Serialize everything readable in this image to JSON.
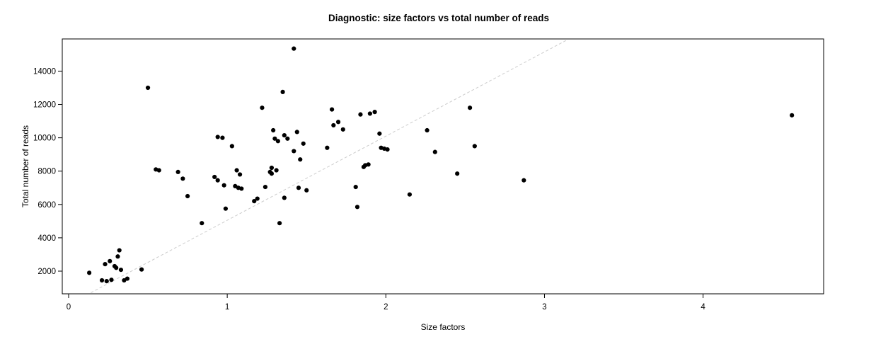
{
  "chart_data": {
    "type": "scatter",
    "title": "Diagnostic: size factors vs total number of reads",
    "xlabel": "Size factors",
    "ylabel": "Total number of reads",
    "x_ticks": [
      0,
      1,
      2,
      3,
      4
    ],
    "y_ticks": [
      2000,
      4000,
      6000,
      8000,
      10000,
      12000,
      14000
    ],
    "xlim": [
      -0.04,
      4.76
    ],
    "ylim": [
      640,
      15930
    ],
    "grid": false,
    "legend": "none",
    "point_color": "#000000",
    "trend_line": {
      "style": "dashed",
      "color": "#cccccc",
      "slope": 5050,
      "intercept": 0,
      "x1": 0.14,
      "y1": 707,
      "x2": 3.14,
      "y2": 15857
    },
    "points": [
      [
        0.13,
        1900
      ],
      [
        0.21,
        1450
      ],
      [
        0.23,
        2420
      ],
      [
        0.24,
        1400
      ],
      [
        0.26,
        2600
      ],
      [
        0.27,
        1480
      ],
      [
        0.29,
        2300
      ],
      [
        0.3,
        2200
      ],
      [
        0.31,
        2880
      ],
      [
        0.32,
        3250
      ],
      [
        0.33,
        2080
      ],
      [
        0.35,
        1450
      ],
      [
        0.37,
        1550
      ],
      [
        0.46,
        2100
      ],
      [
        0.5,
        13000
      ],
      [
        0.55,
        8100
      ],
      [
        0.57,
        8050
      ],
      [
        0.69,
        7950
      ],
      [
        0.72,
        7550
      ],
      [
        0.75,
        6500
      ],
      [
        0.84,
        4880
      ],
      [
        0.92,
        7650
      ],
      [
        0.94,
        7450
      ],
      [
        0.94,
        10050
      ],
      [
        0.97,
        10000
      ],
      [
        0.98,
        7150
      ],
      [
        0.99,
        5750
      ],
      [
        1.03,
        9500
      ],
      [
        1.05,
        7100
      ],
      [
        1.06,
        8050
      ],
      [
        1.07,
        7000
      ],
      [
        1.08,
        7800
      ],
      [
        1.09,
        6950
      ],
      [
        1.17,
        6200
      ],
      [
        1.19,
        6350
      ],
      [
        1.22,
        11800
      ],
      [
        1.24,
        7050
      ],
      [
        1.27,
        7950
      ],
      [
        1.28,
        8200
      ],
      [
        1.28,
        7850
      ],
      [
        1.29,
        10450
      ],
      [
        1.3,
        9950
      ],
      [
        1.31,
        8050
      ],
      [
        1.32,
        9800
      ],
      [
        1.33,
        4880
      ],
      [
        1.35,
        12750
      ],
      [
        1.36,
        10150
      ],
      [
        1.36,
        6400
      ],
      [
        1.38,
        9950
      ],
      [
        1.42,
        15350
      ],
      [
        1.42,
        9200
      ],
      [
        1.44,
        10350
      ],
      [
        1.45,
        7000
      ],
      [
        1.46,
        8700
      ],
      [
        1.48,
        9650
      ],
      [
        1.5,
        6850
      ],
      [
        1.63,
        9400
      ],
      [
        1.66,
        11700
      ],
      [
        1.67,
        10750
      ],
      [
        1.7,
        10950
      ],
      [
        1.73,
        10500
      ],
      [
        1.81,
        7050
      ],
      [
        1.82,
        5850
      ],
      [
        1.84,
        11400
      ],
      [
        1.86,
        8250
      ],
      [
        1.87,
        8350
      ],
      [
        1.89,
        8400
      ],
      [
        1.9,
        11450
      ],
      [
        1.93,
        11550
      ],
      [
        1.96,
        10250
      ],
      [
        1.97,
        9400
      ],
      [
        1.99,
        9350
      ],
      [
        2.01,
        9300
      ],
      [
        2.15,
        6600
      ],
      [
        2.26,
        10450
      ],
      [
        2.31,
        9150
      ],
      [
        2.45,
        7850
      ],
      [
        2.53,
        11800
      ],
      [
        2.56,
        9500
      ],
      [
        2.87,
        7450
      ],
      [
        4.56,
        11350
      ]
    ]
  }
}
